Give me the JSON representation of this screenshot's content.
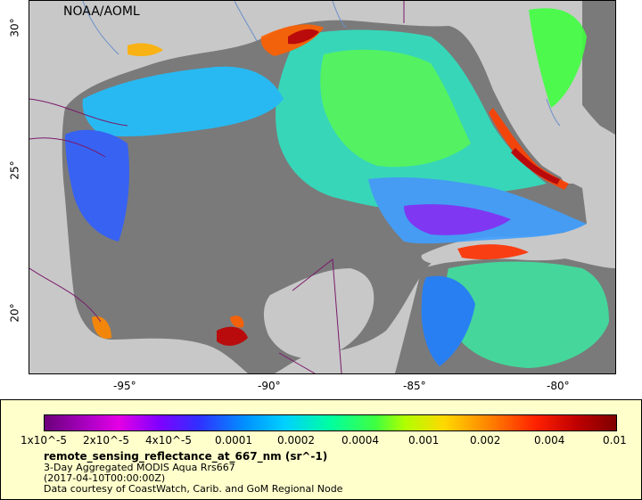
{
  "credit": "NOAA/AOML",
  "axes": {
    "x_ticks": [
      "-95°",
      "-90°",
      "-85°",
      "-80°"
    ],
    "y_ticks": [
      "30°",
      "25°",
      "20°"
    ]
  },
  "legend": {
    "colorbar_labels": [
      "1x10^-5",
      "2x10^-5",
      "4x10^-5",
      "0.0001",
      "0.0002",
      "0.0004",
      "0.001",
      "0.002",
      "0.004",
      "0.01"
    ],
    "variable": "remote_sensing_reflectance_at_667_nm (sr^-1)",
    "dataset": "3-Day Aggregated MODIS Aqua Rrs667",
    "time": "(2017-04-10T00:00:00Z)",
    "courtesy": "Data courtesy of CoastWatch, Carib. and GoM Regional Node"
  },
  "colors": {
    "land": "#c8c8c8",
    "no_data_ocean": "#7a7a7a",
    "legend_bg": "#ffffcc"
  }
}
